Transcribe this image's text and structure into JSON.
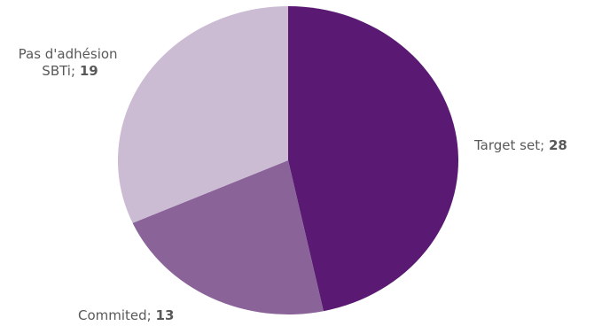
{
  "chart_data": {
    "type": "pie",
    "title": "",
    "slices": [
      {
        "category": "Target set",
        "value": 28,
        "color": "#5a1a73"
      },
      {
        "category": "Commited",
        "value": 13,
        "color": "#8a6399"
      },
      {
        "category": "Pas d'adhésion SBTi",
        "value": 19,
        "color": "#cbbcd4"
      }
    ],
    "start": "12 o'clock",
    "direction": "clockwise",
    "labels": {
      "target_name": "Target set;",
      "target_value": "28",
      "commited_name": "Commited;",
      "commited_value": "13",
      "pas_line1": "Pas d'adhésion",
      "pas_line2": "SBTi;",
      "pas_value": "19"
    }
  }
}
